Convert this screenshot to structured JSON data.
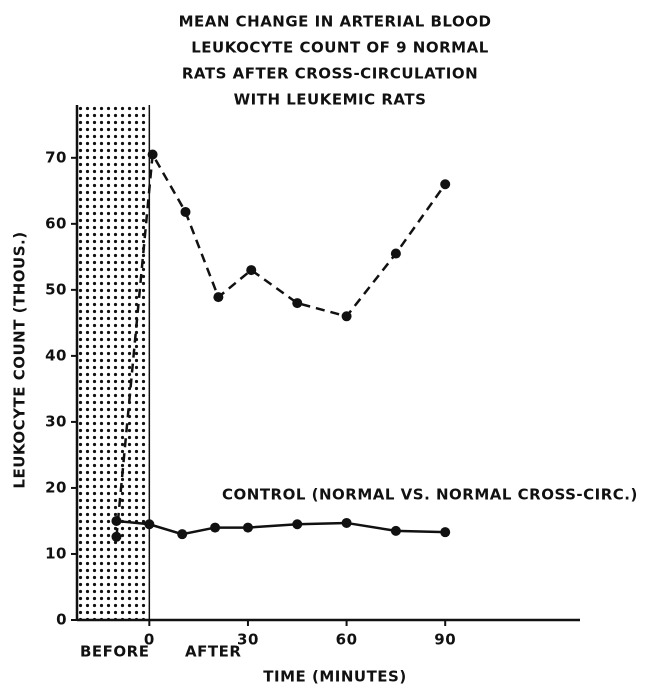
{
  "chart_data": {
    "type": "line",
    "title": [
      "MEAN CHANGE IN ARTERIAL BLOOD",
      "LEUKOCYTE COUNT OF 9 NORMAL",
      "RATS AFTER CROSS-CIRCULATION",
      "WITH LEUKEMIC RATS"
    ],
    "x_label": "TIME (MINUTES)",
    "y_label": "LEUKOCYTE COUNT (THOUS.)",
    "annotations": [
      "CONTROL (NORMAL VS. NORMAL CROSS-CIRC.)",
      "BEFORE",
      "AFTER"
    ],
    "shaded_region": [
      -22,
      0
    ],
    "series": [
      {
        "color": "#111111",
        "style": "dashed",
        "x": [
          -10,
          1,
          11,
          21,
          31,
          45,
          60,
          75,
          90
        ],
        "values": [
          12.6,
          70.5,
          61.8,
          48.9,
          53,
          48,
          46,
          55.5,
          66
        ]
      },
      {
        "color": "#111111",
        "style": "solid",
        "x": [
          -10,
          0,
          10,
          20,
          30,
          45,
          60,
          75,
          90
        ],
        "values": [
          15,
          14.5,
          13,
          14,
          14,
          14.5,
          14.7,
          13.5,
          13.3
        ]
      }
    ],
    "xlim": [
      -22,
      131
    ],
    "xticks": [
      0,
      30,
      60,
      90
    ],
    "ylim": [
      0,
      78
    ],
    "yticks": [
      0,
      10,
      20,
      30,
      40,
      50,
      60,
      70
    ]
  }
}
